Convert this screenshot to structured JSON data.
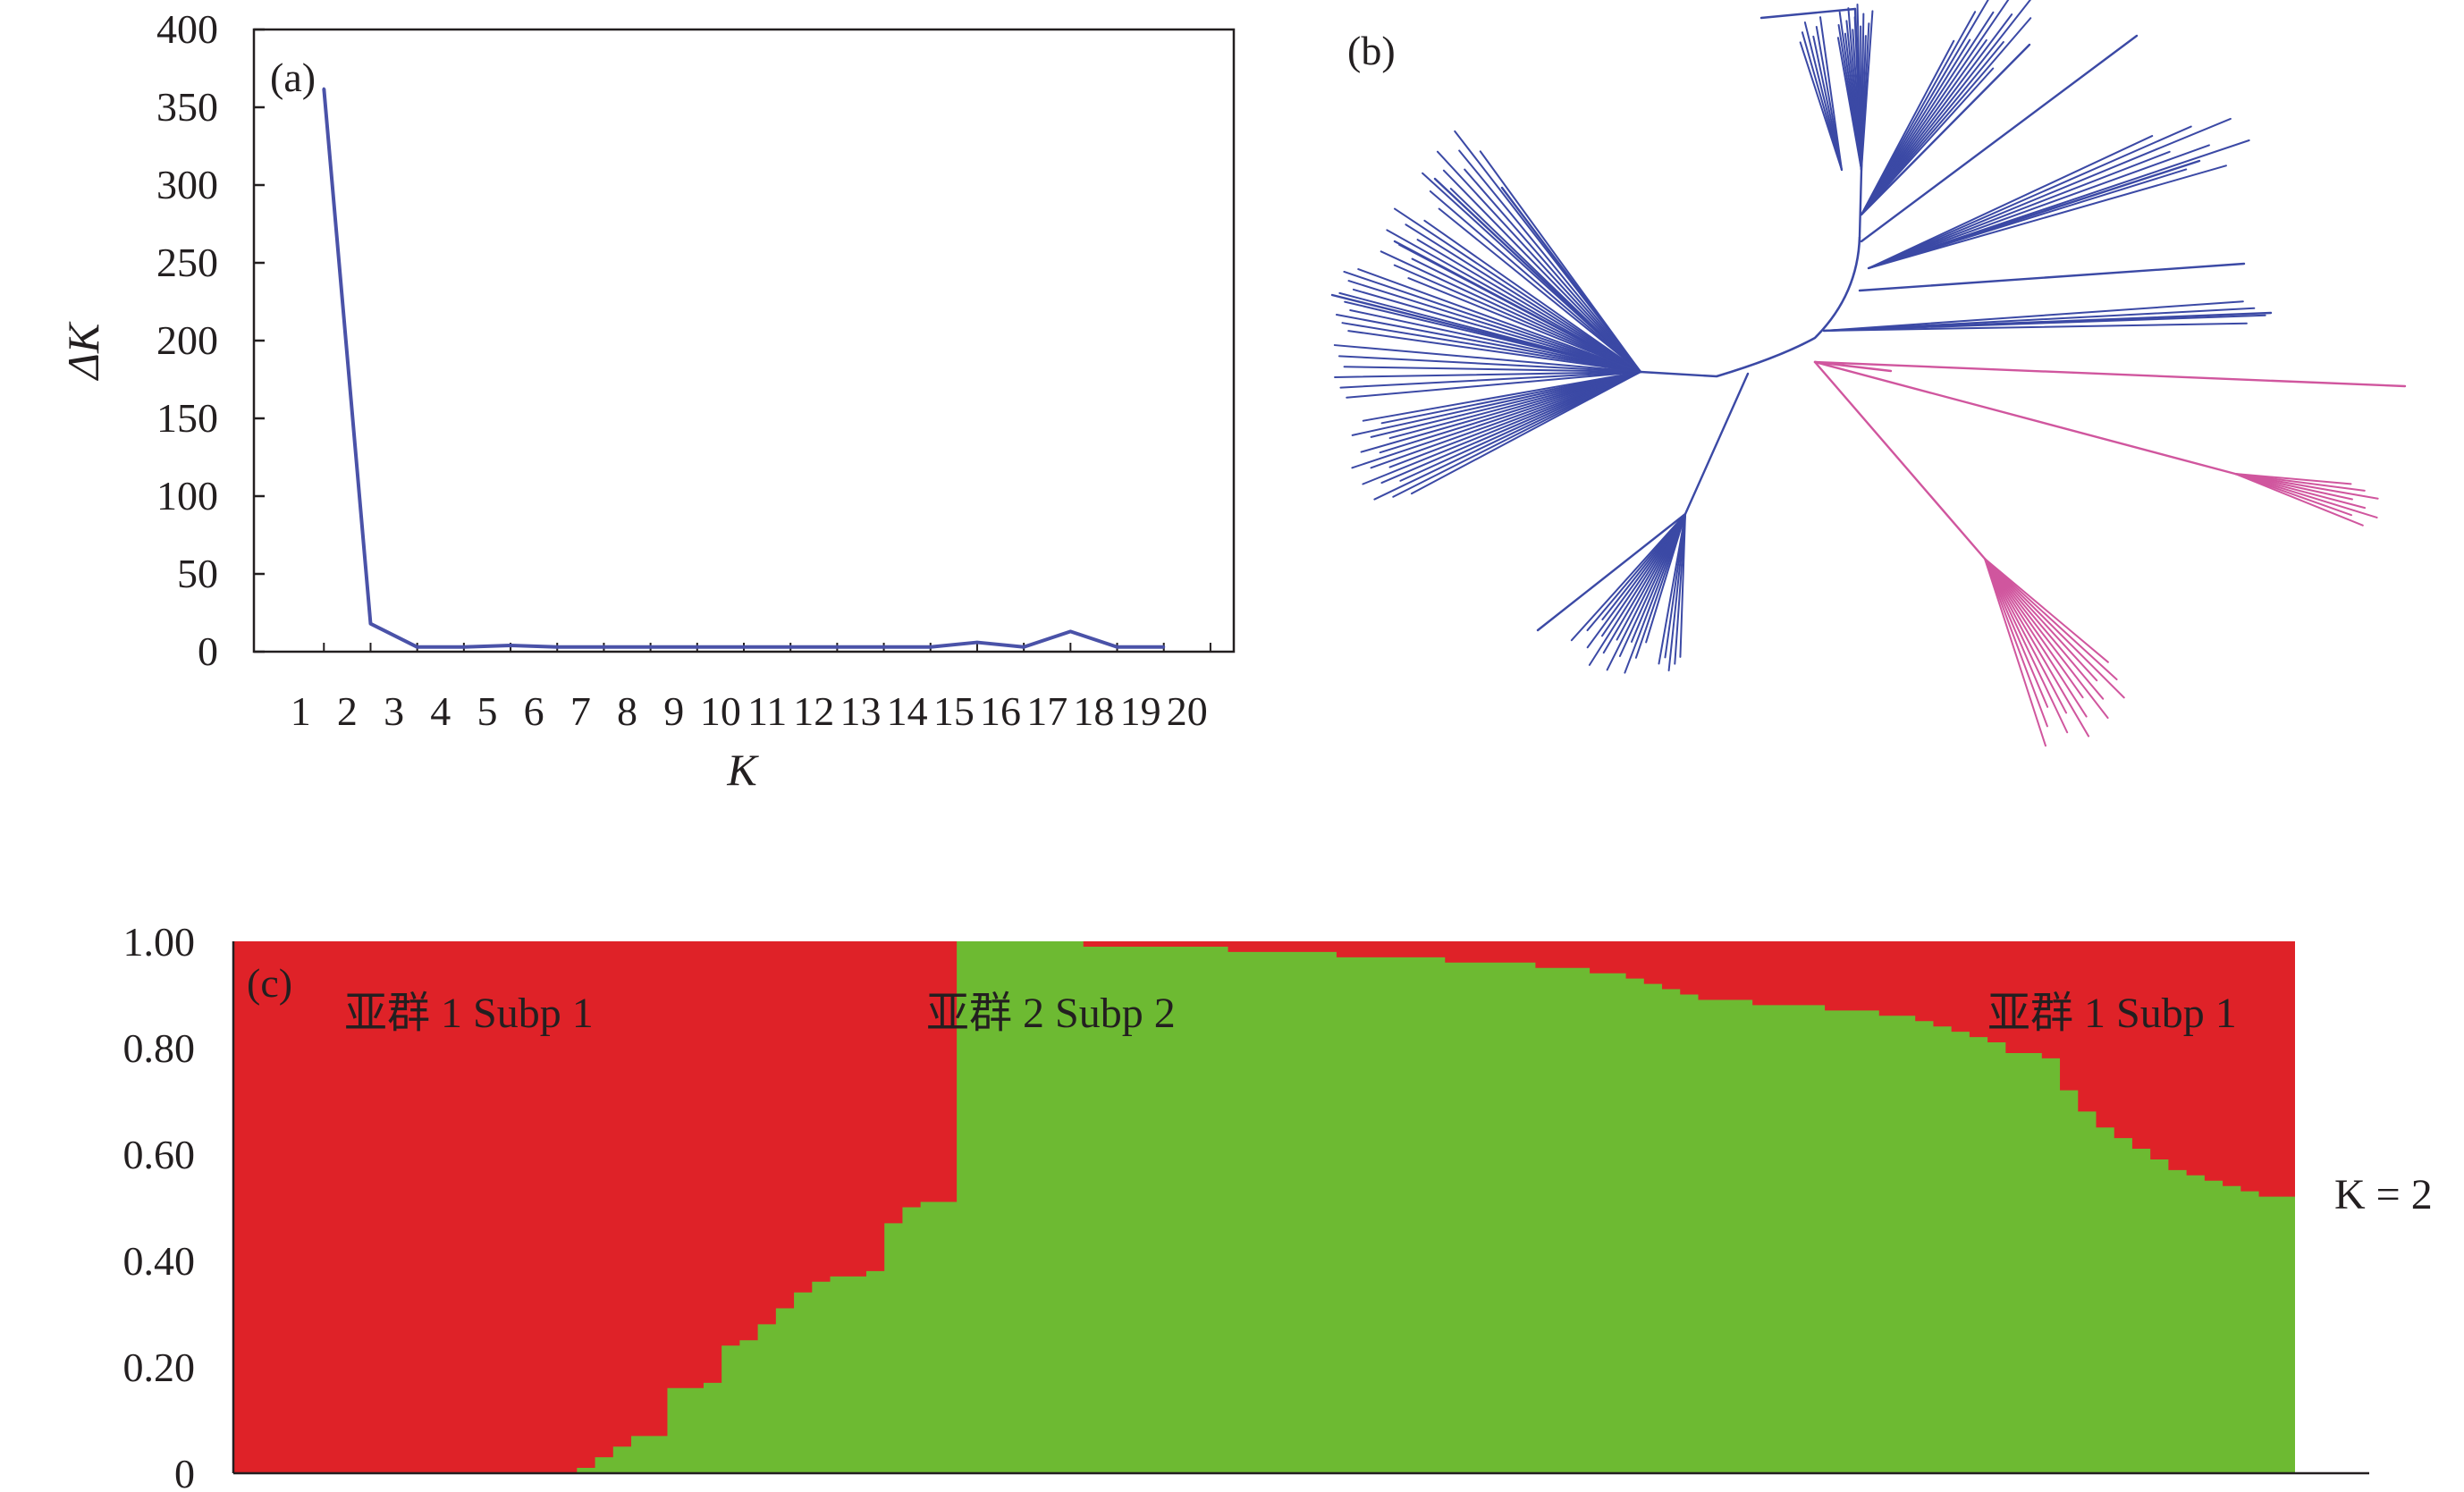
{
  "chart_data": [
    {
      "type": "line",
      "panel_label": "(a)",
      "xlabel": "K",
      "ylabel": "ΔK",
      "x": [
        2,
        3,
        4,
        5,
        6,
        7,
        8,
        9,
        10,
        11,
        12,
        13,
        14,
        15,
        16,
        17,
        18,
        19,
        20
      ],
      "x_tick_labels": [
        "1",
        "2",
        "3",
        "4",
        "5",
        "6",
        "7",
        "8",
        "9",
        "10",
        "11",
        "12",
        "13",
        "14",
        "15",
        "16",
        "17",
        "18",
        "19",
        "20"
      ],
      "values": [
        362,
        18,
        3,
        3,
        4,
        3,
        3,
        3,
        3,
        3,
        3,
        3,
        3,
        3,
        6,
        3,
        13,
        3,
        3
      ],
      "y_tick_labels": [
        "0",
        "50",
        "100",
        "150",
        "200",
        "250",
        "300",
        "350",
        "400"
      ],
      "ylim": [
        0,
        400
      ],
      "xlim": [
        0,
        21
      ],
      "grid": false,
      "color": "#4a52a8"
    },
    {
      "type": "tree",
      "panel_label": "(b)",
      "colors": {
        "subp1": "#d0569e",
        "subp2": "#3b49a5"
      }
    },
    {
      "type": "area",
      "panel_label": "(c)",
      "y_tick_labels": [
        "0",
        "0.20",
        "0.40",
        "0.60",
        "0.80",
        "1.00"
      ],
      "ylim": [
        0,
        1
      ],
      "group_labels": [
        "亚群 1 Subp 1",
        "亚群 2 Subp 2",
        "亚群 1 Subp 1"
      ],
      "k_label": "K = 2",
      "series": [
        {
          "color": "#df2228",
          "values_note": "remaining share above green"
        },
        {
          "color": "#6dba32",
          "values": [
            0,
            0,
            0,
            0,
            0,
            0,
            0,
            0,
            0,
            0,
            0,
            0,
            0,
            0,
            0,
            0,
            0,
            0,
            0,
            0.01,
            0.03,
            0.05,
            0.07,
            0.07,
            0.16,
            0.16,
            0.17,
            0.24,
            0.25,
            0.28,
            0.31,
            0.34,
            0.36,
            0.37,
            0.37,
            0.38,
            0.47,
            0.5,
            0.51,
            0.51,
            1.0,
            1.0,
            1.0,
            1.0,
            1.0,
            1.0,
            1.0,
            0.99,
            0.99,
            0.99,
            0.99,
            0.99,
            0.99,
            0.99,
            0.99,
            0.98,
            0.98,
            0.98,
            0.98,
            0.98,
            0.98,
            0.97,
            0.97,
            0.97,
            0.97,
            0.97,
            0.97,
            0.96,
            0.96,
            0.96,
            0.96,
            0.96,
            0.95,
            0.95,
            0.95,
            0.94,
            0.94,
            0.93,
            0.92,
            0.91,
            0.9,
            0.89,
            0.89,
            0.89,
            0.88,
            0.88,
            0.88,
            0.88,
            0.87,
            0.87,
            0.87,
            0.86,
            0.86,
            0.85,
            0.84,
            0.83,
            0.82,
            0.81,
            0.79,
            0.79,
            0.78,
            0.72,
            0.68,
            0.65,
            0.63,
            0.61,
            0.59,
            0.57,
            0.56,
            0.55,
            0.54,
            0.53,
            0.52,
            0.52
          ]
        }
      ]
    }
  ]
}
